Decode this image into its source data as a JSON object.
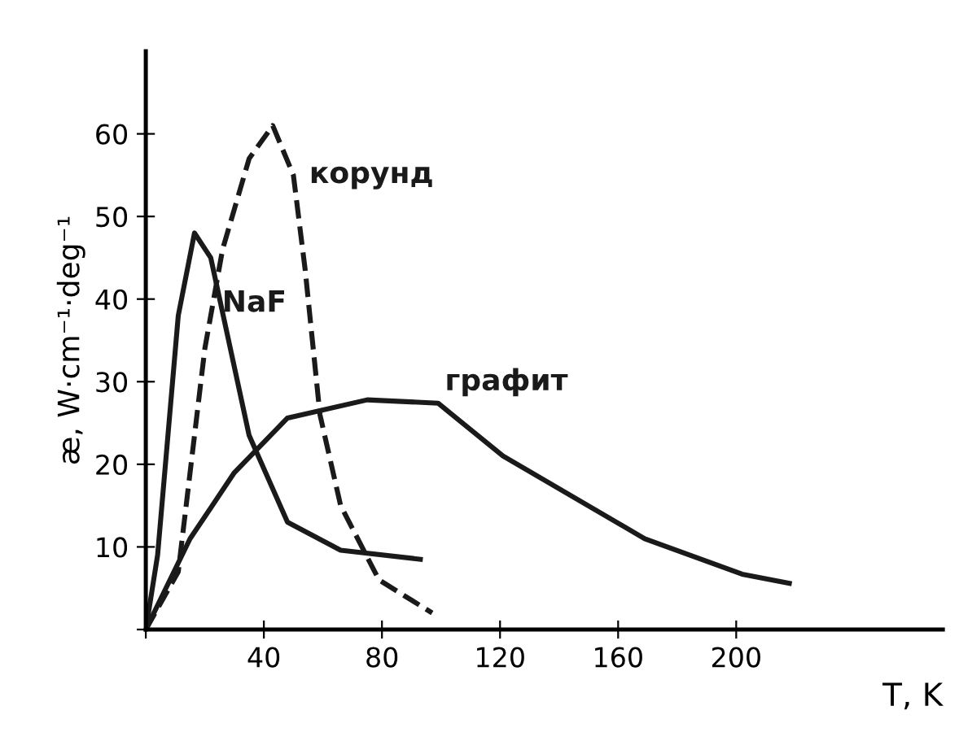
{
  "chart_data": {
    "type": "line",
    "xlabel": "T, K",
    "ylabel": "æ, W·cm⁻¹·deg⁻¹",
    "xlim": [
      0,
      270
    ],
    "ylim": [
      0,
      70
    ],
    "xticks": [
      {
        "value": 0,
        "label": null
      },
      40,
      80,
      120,
      160,
      200
    ],
    "yticks": [
      {
        "value": 0,
        "label": null
      },
      10,
      20,
      30,
      40,
      50,
      60
    ],
    "grid": false,
    "legend": false,
    "marker": "none",
    "series": [
      {
        "name": "NaF",
        "color": "#1a1a1a",
        "line_style": "solid",
        "x": [
          0,
          4,
          11,
          16.5,
          22,
          35,
          48,
          66,
          93
        ],
        "values": [
          0,
          9,
          38,
          48,
          45,
          23.5,
          13,
          9.6,
          8.5
        ]
      },
      {
        "name": "корунд",
        "color": "#1a1a1a",
        "line_style": "dashed",
        "x": [
          0,
          11,
          20,
          26,
          35,
          43,
          50,
          54,
          59,
          66,
          79,
          97
        ],
        "values": [
          0,
          7,
          34,
          46,
          57,
          61,
          55,
          43.5,
          26,
          15,
          6,
          2
        ]
      },
      {
        "name": "графит",
        "color": "#1a1a1a",
        "line_style": "solid",
        "x": [
          0,
          15,
          30,
          48,
          75,
          99,
          121,
          169,
          202,
          218
        ],
        "values": [
          0,
          11,
          19,
          25.6,
          27.8,
          27.4,
          21,
          11,
          6.7,
          5.6
        ]
      }
    ]
  }
}
